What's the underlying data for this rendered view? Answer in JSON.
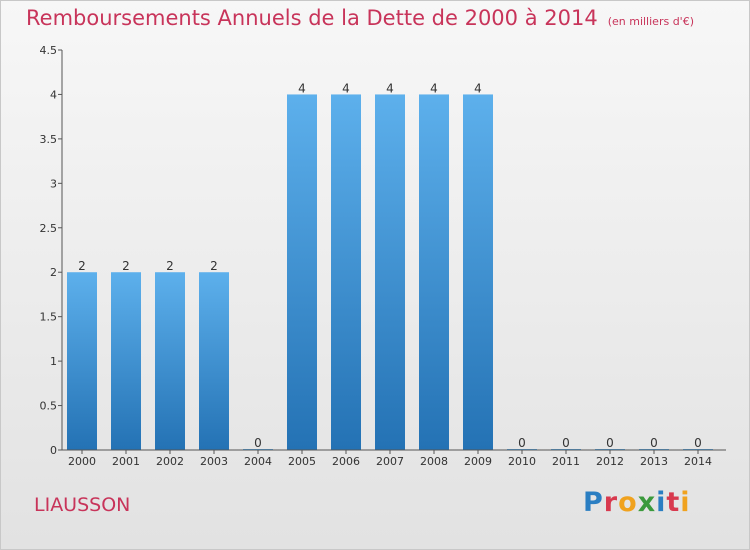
{
  "header": {
    "title": "Remboursements Annuels de la Dette de 2000 à 2014",
    "subtitle": "(en milliers d'€)"
  },
  "footer": {
    "commune": "LIAUSSON",
    "brand": [
      "P",
      "r",
      "o",
      "x",
      "i",
      "t",
      "i"
    ],
    "brand_colors": [
      "#2a7ec2",
      "#d8394e",
      "#f0a21e",
      "#3b9a3c",
      "#2a7ec2",
      "#d8394e",
      "#f0a21e"
    ]
  },
  "chart_data": {
    "type": "bar",
    "title": "Remboursements Annuels de la Dette de 2000 à 2014",
    "subtitle": "(en milliers d'€)",
    "xlabel": "",
    "ylabel": "",
    "categories": [
      "2000",
      "2001",
      "2002",
      "2003",
      "2004",
      "2005",
      "2006",
      "2007",
      "2008",
      "2009",
      "2010",
      "2011",
      "2012",
      "2013",
      "2014"
    ],
    "values": [
      2,
      2,
      2,
      2,
      0,
      4,
      4,
      4,
      4,
      4,
      0,
      0,
      0,
      0,
      0
    ],
    "data_labels": [
      "2",
      "2",
      "2",
      "2",
      "0",
      "4",
      "4",
      "4",
      "4",
      "4",
      "0",
      "0",
      "0",
      "0",
      "0"
    ],
    "ylim": [
      0,
      4.5
    ],
    "yticks": [
      0,
      0.5,
      1,
      1.5,
      2,
      2.5,
      3,
      3.5,
      4,
      4.5
    ],
    "ytick_labels": [
      "0",
      "0.5",
      "1",
      "1.5",
      "2",
      "2.5",
      "3",
      "3.5",
      "4",
      "4.5"
    ],
    "grid": false,
    "bar_color_top": "#5db0ec",
    "bar_color_bottom": "#2472b4"
  }
}
